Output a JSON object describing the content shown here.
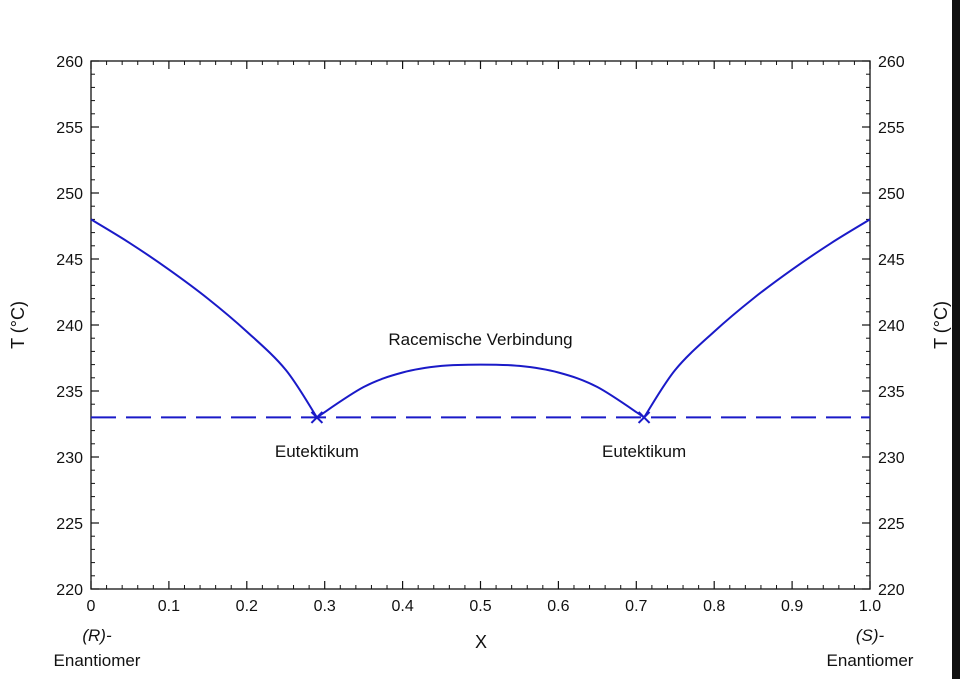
{
  "chart_data": {
    "type": "line",
    "title": "",
    "xlabel": "X",
    "ylabel": "T (°C)",
    "ylabel_right": "T (°C)",
    "xlim": [
      0,
      1.0
    ],
    "ylim": [
      220,
      260
    ],
    "x_ticks": [
      "0",
      "0.1",
      "0.2",
      "0.3",
      "0.4",
      "0.5",
      "0.6",
      "0.7",
      "0.8",
      "0.9",
      "1.0"
    ],
    "x_tick_values": [
      0,
      0.1,
      0.2,
      0.3,
      0.4,
      0.5,
      0.6,
      0.7,
      0.8,
      0.9,
      1.0
    ],
    "y_ticks": [
      "220",
      "225",
      "230",
      "235",
      "240",
      "245",
      "250",
      "255",
      "260"
    ],
    "y_tick_values": [
      220,
      225,
      230,
      235,
      240,
      245,
      250,
      255,
      260
    ],
    "left_end_label": {
      "line1": "(R)-",
      "line2": "Enantiomer"
    },
    "right_end_label": {
      "line1": "(S)-",
      "line2": "Enantiomer"
    },
    "line_color": "#1a1ac8",
    "series": [
      {
        "style": "solid",
        "x": [
          0,
          0.05,
          0.1,
          0.15,
          0.2,
          0.25,
          0.29
        ],
        "y": [
          248,
          246.2,
          244.2,
          242.0,
          239.5,
          236.6,
          233
        ]
      },
      {
        "style": "solid",
        "x": [
          0.29,
          0.35,
          0.4,
          0.45,
          0.5,
          0.55,
          0.6,
          0.65,
          0.71
        ],
        "y": [
          233,
          235.3,
          236.4,
          236.9,
          237,
          236.9,
          236.4,
          235.3,
          233
        ]
      },
      {
        "style": "solid",
        "x": [
          0.71,
          0.75,
          0.8,
          0.85,
          0.9,
          0.95,
          1.0
        ],
        "y": [
          233,
          236.6,
          239.5,
          242.0,
          244.2,
          246.2,
          248
        ]
      },
      {
        "style": "dashed",
        "x": [
          0,
          1.0
        ],
        "y": [
          233,
          233
        ]
      }
    ],
    "markers": [
      {
        "x": 0.29,
        "y": 233
      },
      {
        "x": 0.71,
        "y": 233
      }
    ],
    "annotations": [
      {
        "text": "Racemische Verbindung",
        "x": 0.5,
        "y": 238.5
      },
      {
        "text": "Eutektikum",
        "x": 0.29,
        "y": 230
      },
      {
        "text": "Eutektikum",
        "x": 0.71,
        "y": 230
      }
    ],
    "grid": false,
    "legend": "none"
  }
}
